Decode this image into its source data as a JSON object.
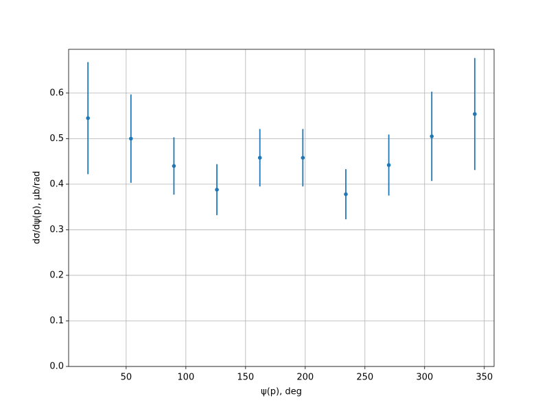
{
  "chart_data": {
    "type": "errorbar",
    "xlabel": "ψ(p), deg",
    "ylabel": "dσ/dψ(p), μb/rad",
    "x": [
      18,
      54,
      90,
      126,
      162,
      198,
      234,
      270,
      306,
      342
    ],
    "values": [
      0.545,
      0.5,
      0.44,
      0.388,
      0.458,
      0.458,
      0.378,
      0.442,
      0.505,
      0.554
    ],
    "errors": [
      0.123,
      0.097,
      0.063,
      0.056,
      0.063,
      0.063,
      0.055,
      0.067,
      0.098,
      0.123
    ],
    "color": "#1f77b4",
    "xlim": [
      1.8,
      358.2
    ],
    "xticks": [
      50,
      100,
      150,
      200,
      250,
      300,
      350
    ],
    "ylim": [
      0,
      0.696
    ],
    "yticks": [
      {
        "value": 0,
        "label": "0.0"
      },
      0.1,
      0.2,
      0.3,
      0.4,
      0.5,
      0.6
    ],
    "grid": true
  }
}
